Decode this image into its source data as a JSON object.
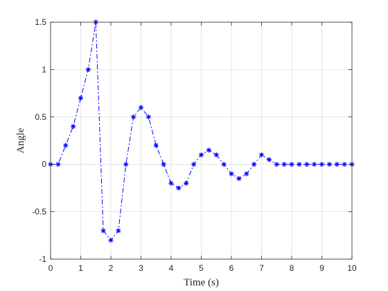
{
  "chart_data": {
    "type": "line",
    "title": "",
    "xlabel": "Time (s)",
    "ylabel": "Angle",
    "xlim": [
      0,
      10
    ],
    "ylim": [
      -1,
      1.5
    ],
    "grid": true,
    "legend": "none",
    "xticks": [
      0,
      1,
      2,
      3,
      4,
      5,
      6,
      7,
      8,
      9,
      10
    ],
    "xtick_labels": [
      "0",
      "1",
      "2",
      "3",
      "4",
      "5",
      "6",
      "7",
      "8",
      "9",
      "10"
    ],
    "yticks": [
      -1,
      -0.5,
      0,
      0.5,
      1,
      1.5
    ],
    "ytick_labels": [
      "-1",
      "-0.5",
      "0",
      "0.5",
      "1",
      "1.5"
    ],
    "series": [
      {
        "color": "#0000ff",
        "line_style": "dash-dot",
        "marker": "asterisk",
        "x": [
          0,
          0.25,
          0.5,
          0.75,
          1,
          1.25,
          1.5,
          1.75,
          2,
          2.25,
          2.5,
          2.75,
          3,
          3.25,
          3.5,
          3.75,
          4,
          4.25,
          4.5,
          4.75,
          5,
          5.25,
          5.5,
          5.75,
          6,
          6.25,
          6.5,
          6.75,
          7,
          7.25,
          7.5,
          7.75,
          8,
          8.25,
          8.5,
          8.75,
          9,
          9.25,
          9.5,
          9.75,
          10
        ],
        "y": [
          0,
          0,
          0.2,
          0.4,
          0.7,
          1.0,
          1.5,
          -0.7,
          -0.8,
          -0.7,
          0,
          0.5,
          0.6,
          0.5,
          0.2,
          0,
          -0.2,
          -0.25,
          -0.2,
          0,
          0.1,
          0.15,
          0.1,
          0,
          -0.1,
          -0.15,
          -0.1,
          0,
          0.1,
          0.05,
          0,
          0,
          0,
          0,
          0,
          0,
          0,
          0,
          0,
          0,
          0
        ]
      }
    ]
  }
}
